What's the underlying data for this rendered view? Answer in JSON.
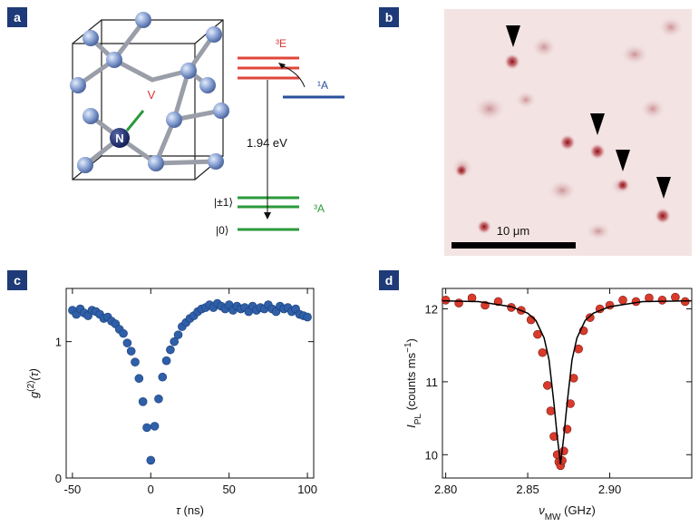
{
  "panels": [
    "a",
    "b",
    "c",
    "d"
  ],
  "diagram": {
    "vacancy": "V",
    "nitrogen": "N",
    "excited_state": "³E",
    "singlet": "¹A",
    "transition": "1.94 eV",
    "ground_pm1": "|±1⟩",
    "ground_state": "³A",
    "ground_0": "|0⟩"
  },
  "image": {
    "scale_bar": "10 μm"
  },
  "chart_data": [
    {
      "type": "scatter",
      "xlabel": [
        {
          "text": "τ",
          "style": "italic"
        },
        {
          "text": " (ns)"
        }
      ],
      "ylabel": [
        {
          "text": "g",
          "style": "italic"
        },
        {
          "text": "(2)",
          "shift": "sup"
        },
        {
          "text": "(τ)",
          "style": "italic"
        }
      ],
      "xlim": [
        -54,
        104
      ],
      "ylim": [
        0,
        1.39
      ],
      "xticks": [
        -50,
        0,
        50,
        100
      ],
      "yticks": [
        0,
        1
      ],
      "series": [
        {
          "color": "#2f5fa8",
          "x": [
            -50,
            -47.5,
            -45,
            -42.5,
            -40,
            -37.5,
            -35,
            -32.5,
            -30,
            -27.5,
            -25,
            -22.5,
            -20,
            -17.5,
            -15,
            -12.5,
            -10,
            -7.5,
            -5,
            -2.5,
            0,
            2.5,
            5,
            7.5,
            10,
            12.5,
            15,
            17.5,
            20,
            22.5,
            25,
            27.5,
            30,
            32.5,
            35,
            37.5,
            40,
            42.5,
            45,
            47.5,
            50,
            52.5,
            55,
            57.5,
            60,
            62.5,
            65,
            67.5,
            70,
            72.5,
            75,
            77.5,
            80,
            82.5,
            85,
            87.5,
            90,
            92.5,
            95,
            97.5,
            100
          ],
          "values": [
            1.23,
            1.2,
            1.24,
            1.21,
            1.19,
            1.23,
            1.22,
            1.2,
            1.17,
            1.18,
            1.15,
            1.13,
            1.09,
            1.06,
            0.99,
            0.93,
            0.85,
            0.73,
            0.56,
            0.37,
            0.13,
            0.38,
            0.58,
            0.74,
            0.86,
            0.94,
            1.0,
            1.05,
            1.11,
            1.14,
            1.17,
            1.19,
            1.22,
            1.24,
            1.25,
            1.27,
            1.25,
            1.28,
            1.26,
            1.24,
            1.27,
            1.23,
            1.26,
            1.24,
            1.25,
            1.22,
            1.26,
            1.23,
            1.25,
            1.24,
            1.27,
            1.24,
            1.22,
            1.26,
            1.24,
            1.25,
            1.22,
            1.24,
            1.2,
            1.19,
            1.18
          ]
        }
      ]
    },
    {
      "type": "scatter",
      "xlabel": [
        {
          "text": "ν",
          "style": "italic"
        },
        {
          "text": "MW",
          "shift": "sub"
        },
        {
          "text": " (GHz)"
        }
      ],
      "ylabel": [
        {
          "text": "I",
          "style": "italic"
        },
        {
          "text": "PL",
          "shift": "sub"
        },
        {
          "text": " (counts ms"
        },
        {
          "text": "−1",
          "shift": "sup"
        },
        {
          "text": ")"
        }
      ],
      "xlim": [
        2.798,
        2.95
      ],
      "ylim": [
        9.68,
        12.28
      ],
      "xticks": [
        {
          "value": 2.8,
          "label": "2.80"
        },
        2.85,
        {
          "value": 2.9,
          "label": "2.90"
        }
      ],
      "yticks": [
        10,
        11,
        12
      ],
      "series": [
        {
          "type": "scatter",
          "color": "#d93a2b",
          "x": [
            2.8,
            2.808,
            2.816,
            2.824,
            2.832,
            2.84,
            2.846,
            2.852,
            2.856,
            2.859,
            2.862,
            2.864,
            2.866,
            2.868,
            2.869,
            2.87,
            2.871,
            2.872,
            2.874,
            2.876,
            2.878,
            2.881,
            2.884,
            2.888,
            2.894,
            2.9,
            2.908,
            2.916,
            2.924,
            2.932,
            2.94,
            2.946
          ],
          "values": [
            12.12,
            12.08,
            12.15,
            12.05,
            12.1,
            12.02,
            11.98,
            11.85,
            11.65,
            11.4,
            10.95,
            10.6,
            10.25,
            10.0,
            9.9,
            9.85,
            9.92,
            10.05,
            10.35,
            10.7,
            11.05,
            11.45,
            11.7,
            11.88,
            12.0,
            12.05,
            12.12,
            12.1,
            12.15,
            12.12,
            12.16,
            12.1
          ]
        },
        {
          "type": "line",
          "color": "#000000",
          "x": [
            2.798,
            2.82,
            2.84,
            2.85,
            2.855,
            2.86,
            2.863,
            2.866,
            2.868,
            2.87,
            2.872,
            2.874,
            2.877,
            2.88,
            2.885,
            2.89,
            2.9,
            2.92,
            2.95
          ],
          "values": [
            12.11,
            12.1,
            12.03,
            11.94,
            11.84,
            11.6,
            11.3,
            10.7,
            10.25,
            9.87,
            10.25,
            10.7,
            11.3,
            11.6,
            11.84,
            11.94,
            12.03,
            12.1,
            12.11
          ]
        }
      ]
    }
  ]
}
